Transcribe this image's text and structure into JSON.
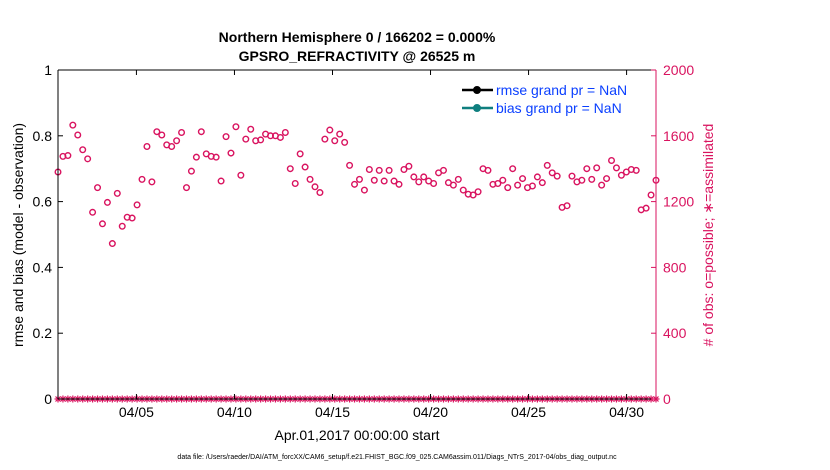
{
  "chart_data": {
    "type": "scatter",
    "title_line1": "Northern Hemisphere 0 / 166202 = 0.000%",
    "title_line2": "GPSRO_REFRACTIVITY @ 26525 m",
    "xlabel": "Apr.01,2017 00:00:00 start",
    "ylabel_left": "rmse and bias (model - observation)",
    "ylabel_right": "# of obs: o=possible; ∗=assimilated",
    "footer": "data file: /Users/raeder/DAI/ATM_forcXX/CAM6_setup/f.e21.FHIST_BGC.f09_025.CAM6assim.011/Diags_NTrS_2017-04/obs_diag_output.nc",
    "xlim": [
      1,
      31.5
    ],
    "ylim_left": [
      0,
      1
    ],
    "ylim_right": [
      0,
      2000
    ],
    "left_ticks": [
      "0",
      "0.2",
      "0.4",
      "0.6",
      "0.8",
      "1"
    ],
    "right_ticks": [
      "0",
      "400",
      "800",
      "1200",
      "1600",
      "2000"
    ],
    "x_ticks": [
      {
        "day": 5,
        "label": "04/05"
      },
      {
        "day": 10,
        "label": "04/10"
      },
      {
        "day": 15,
        "label": "04/15"
      },
      {
        "day": 20,
        "label": "04/20"
      },
      {
        "day": 25,
        "label": "04/25"
      },
      {
        "day": 30,
        "label": "04/30"
      }
    ],
    "legend": [
      {
        "label": "rmse grand pr = NaN",
        "color": "#000000"
      },
      {
        "label": "bias grand pr = NaN",
        "color": "#0f7f7f"
      }
    ],
    "colors": {
      "obs": "#d9135f",
      "axis": "#000000",
      "legend_text": "#0a3fff",
      "rmse": "#000000",
      "bias": "#0f7f7f"
    },
    "series": [
      {
        "name": "possible (o)",
        "axis": "right",
        "values": [
          1380,
          1475,
          1480,
          1665,
          1605,
          1515,
          1460,
          1135,
          1285,
          1065,
          1195,
          945,
          1250,
          1050,
          1105,
          1100,
          1180,
          1335,
          1535,
          1320,
          1625,
          1605,
          1545,
          1535,
          1570,
          1620,
          1285,
          1385,
          1470,
          1625,
          1490,
          1475,
          1470,
          1325,
          1595,
          1495,
          1655,
          1360,
          1580,
          1640,
          1570,
          1575,
          1610,
          1600,
          1600,
          1590,
          1620,
          1400,
          1310,
          1490,
          1410,
          1335,
          1290,
          1255,
          1580,
          1635,
          1570,
          1610,
          1560,
          1420,
          1305,
          1335,
          1270,
          1395,
          1330,
          1390,
          1325,
          1390,
          1325,
          1305,
          1395,
          1415,
          1350,
          1320,
          1350,
          1325,
          1310,
          1375,
          1390,
          1315,
          1300,
          1335,
          1270,
          1245,
          1240,
          1260,
          1400,
          1390,
          1305,
          1310,
          1330,
          1285,
          1400,
          1300,
          1340,
          1285,
          1295,
          1350,
          1315,
          1420,
          1375,
          1355,
          1165,
          1175,
          1355,
          1320,
          1330,
          1400,
          1335,
          1405,
          1300,
          1340,
          1450,
          1405,
          1360,
          1380,
          1395,
          1390,
          1150,
          1160,
          1240,
          1330
        ]
      },
      {
        "name": "assimilated (∗)",
        "axis": "right",
        "values": [
          0,
          0,
          0,
          0,
          0,
          0,
          0,
          0,
          0,
          0,
          0,
          0,
          0,
          0,
          0,
          0,
          0,
          0,
          0,
          0,
          0,
          0,
          0,
          0,
          0,
          0,
          0,
          0,
          0,
          0,
          0,
          0,
          0,
          0,
          0,
          0,
          0,
          0,
          0,
          0,
          0,
          0,
          0,
          0,
          0,
          0,
          0,
          0,
          0,
          0,
          0,
          0,
          0,
          0,
          0,
          0,
          0,
          0,
          0,
          0,
          0,
          0,
          0,
          0,
          0,
          0,
          0,
          0,
          0,
          0,
          0,
          0,
          0,
          0,
          0,
          0,
          0,
          0,
          0,
          0,
          0,
          0,
          0,
          0,
          0,
          0,
          0,
          0,
          0,
          0,
          0,
          0,
          0,
          0,
          0,
          0,
          0,
          0,
          0,
          0,
          0,
          0,
          0,
          0,
          0,
          0,
          0,
          0,
          0,
          0,
          0,
          0,
          0,
          0,
          0,
          0,
          0,
          0,
          0,
          0,
          0,
          0
        ]
      }
    ]
  }
}
